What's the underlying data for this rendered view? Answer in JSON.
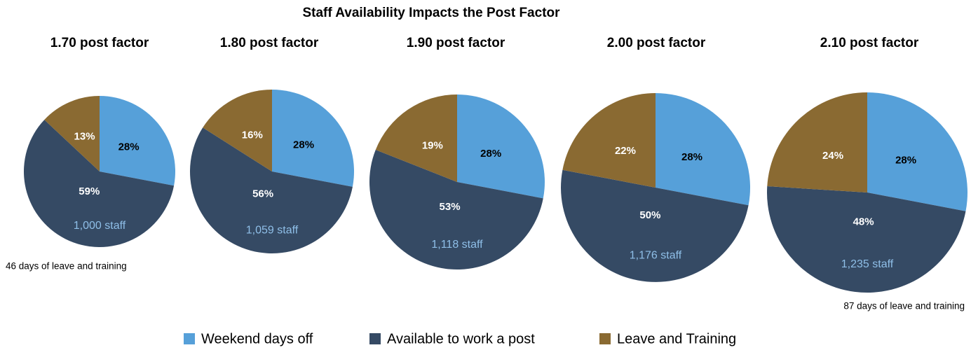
{
  "title": "Staff Availability Impacts the Post Factor",
  "legend": {
    "categories": [
      "Weekend days off",
      "Available to work a post",
      "Leave and Training"
    ],
    "colors": [
      "#56a0d9",
      "#354a64",
      "#8a6a32"
    ]
  },
  "chart_data": [
    {
      "type": "pie",
      "title": "1.70 post factor",
      "values": [
        28,
        59,
        13
      ],
      "annotation": "1,000 staff",
      "note": "46 days of leave and training"
    },
    {
      "type": "pie",
      "title": "1.80 post factor",
      "values": [
        28,
        56,
        16
      ],
      "annotation": "1,059 staff"
    },
    {
      "type": "pie",
      "title": "1.90 post factor",
      "values": [
        28,
        53,
        19
      ],
      "annotation": "1,118 staff"
    },
    {
      "type": "pie",
      "title": "2.00 post factor",
      "values": [
        28,
        50,
        22
      ],
      "annotation": "1,176 staff"
    },
    {
      "type": "pie",
      "title": "2.10 post factor",
      "values": [
        28,
        48,
        24
      ],
      "annotation": "1,235 staff",
      "note": "87 days of leave and training"
    }
  ]
}
